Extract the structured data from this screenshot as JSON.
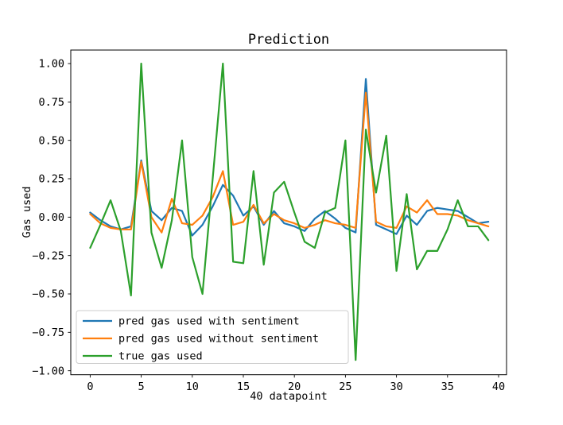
{
  "figure": {
    "title": "Prediction",
    "xlabel": "40 datapoint",
    "ylabel": "Gas used",
    "background_color": "#ffffff",
    "frame_color": "#000000"
  },
  "chart_data": {
    "type": "line",
    "title": "Prediction",
    "xlabel": "40 datapoint",
    "ylabel": "Gas used",
    "grid": false,
    "legend_position": "lower left",
    "xlim": [
      -1.9,
      40.78
    ],
    "ylim": [
      -1.026,
      1.088
    ],
    "x_ticks": [
      0,
      5,
      10,
      15,
      20,
      25,
      30,
      35,
      40
    ],
    "x_tick_labels": [
      "0",
      "5",
      "10",
      "15",
      "20",
      "25",
      "30",
      "35",
      "40"
    ],
    "y_ticks": [
      1.0,
      0.75,
      0.5,
      0.25,
      0.0,
      -0.25,
      -0.5,
      -0.75,
      -1.0
    ],
    "y_tick_labels": [
      "1.00",
      "0.75",
      "0.50",
      "0.25",
      "0.00",
      "−0.25",
      "−0.50",
      "−0.75",
      "−1.00"
    ],
    "x": [
      0,
      1,
      2,
      3,
      4,
      5,
      6,
      7,
      8,
      9,
      10,
      11,
      12,
      13,
      14,
      15,
      16,
      17,
      18,
      19,
      20,
      21,
      22,
      23,
      24,
      25,
      26,
      27,
      28,
      29,
      30,
      31,
      32,
      33,
      34,
      35,
      36,
      37,
      38,
      39
    ],
    "series": [
      {
        "name": "pred gas used with sentiment",
        "color": "#1f77b4",
        "values": [
          0.03,
          -0.02,
          -0.06,
          -0.08,
          -0.06,
          0.37,
          0.04,
          -0.02,
          0.06,
          0.04,
          -0.12,
          -0.05,
          0.07,
          0.21,
          0.14,
          0.01,
          0.07,
          -0.05,
          0.04,
          -0.04,
          -0.06,
          -0.09,
          -0.01,
          0.04,
          -0.01,
          -0.07,
          -0.1,
          0.9,
          -0.05,
          -0.08,
          -0.11,
          0.01,
          -0.05,
          0.04,
          0.06,
          0.05,
          0.04,
          0.0,
          -0.04,
          -0.03
        ]
      },
      {
        "name": "pred gas used without sentiment",
        "color": "#ff7f0e",
        "values": [
          0.02,
          -0.04,
          -0.07,
          -0.08,
          -0.08,
          0.36,
          0.0,
          -0.1,
          0.12,
          -0.04,
          -0.05,
          0.01,
          0.13,
          0.3,
          -0.05,
          -0.03,
          0.08,
          -0.04,
          0.02,
          -0.02,
          -0.04,
          -0.07,
          -0.05,
          -0.02,
          -0.04,
          -0.05,
          -0.07,
          0.81,
          -0.03,
          -0.06,
          -0.07,
          0.07,
          0.03,
          0.11,
          0.02,
          0.02,
          0.01,
          -0.02,
          -0.04,
          -0.06
        ]
      },
      {
        "name": "true gas used",
        "color": "#2ca02c",
        "values": [
          -0.2,
          -0.05,
          0.11,
          -0.09,
          -0.51,
          1.0,
          -0.1,
          -0.33,
          -0.02,
          0.5,
          -0.26,
          -0.5,
          0.25,
          1.0,
          -0.29,
          -0.3,
          0.3,
          -0.31,
          0.16,
          0.23,
          0.03,
          -0.16,
          -0.2,
          0.03,
          0.06,
          0.5,
          -0.93,
          0.57,
          0.16,
          0.53,
          -0.35,
          0.15,
          -0.34,
          -0.22,
          -0.22,
          -0.08,
          0.11,
          -0.06,
          -0.06,
          -0.15
        ]
      }
    ]
  }
}
